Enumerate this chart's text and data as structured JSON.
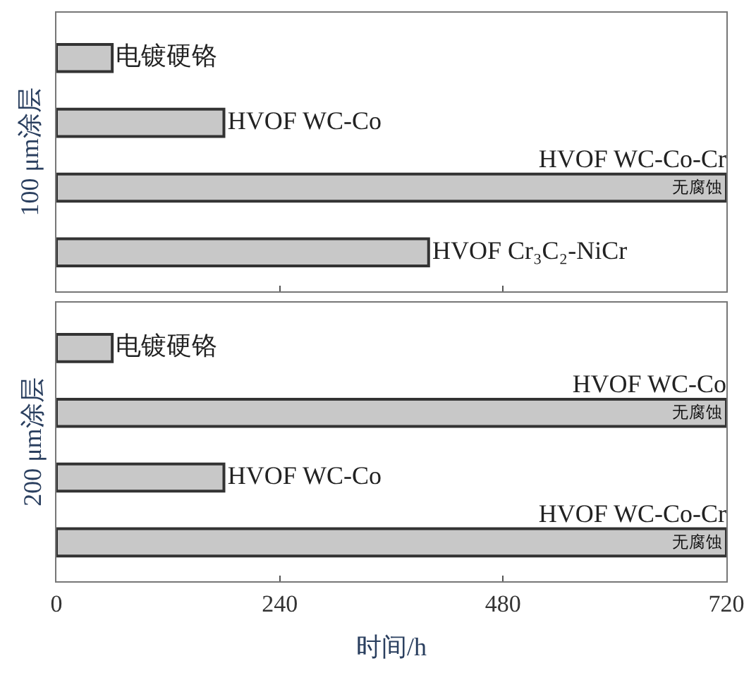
{
  "chart_data": [
    {
      "type": "bar",
      "orientation": "horizontal",
      "ylabel": "100 μm涂层",
      "categories": [
        "电镀硬铬",
        "HVOF WC-Co",
        "HVOF WC-Co-Cr",
        "HVOF Cr₃C₂-NiCr"
      ],
      "values": [
        60,
        180,
        720,
        400
      ],
      "value_labels": [
        null,
        null,
        "无腐蚀",
        null
      ],
      "color": "#c8c8c8",
      "xlim": [
        0,
        720
      ],
      "xticks": [
        0,
        240,
        480,
        720
      ],
      "tick_labels": "y"
    },
    {
      "type": "bar",
      "orientation": "horizontal",
      "ylabel": "200 μm涂层",
      "xlabel": "时间/h",
      "categories": [
        "电镀硬铬",
        "HVOF WC-Co",
        "HVOF WC-Co",
        "HVOF WC-Co-Cr"
      ],
      "values": [
        60,
        720,
        180,
        720
      ],
      "value_labels": [
        null,
        "无腐蚀",
        null,
        "无腐蚀"
      ],
      "color": "#c8c8c8",
      "xlim": [
        0,
        720
      ],
      "xticks": [
        0,
        240,
        480,
        720
      ],
      "tick_labels": "x"
    }
  ]
}
